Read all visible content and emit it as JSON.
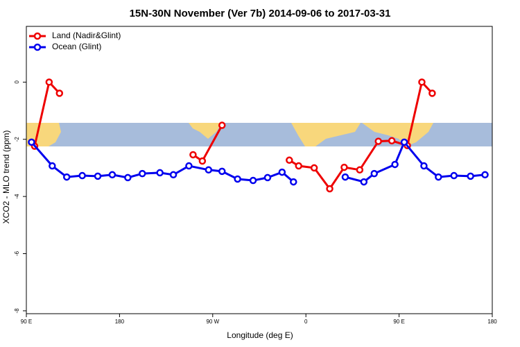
{
  "chart_data": {
    "type": "line",
    "title": "15N-30N November (Ver 7b)   2014-09-06 to 2017-03-31",
    "x_label": "Longitude (deg E)",
    "y_label": "XCO2 - MLO trend (ppm)",
    "xlim": [
      90,
      540
    ],
    "ylim": [
      -8.1,
      1.95
    ],
    "xticks": [
      {
        "value": 90,
        "label": "90 E"
      },
      180,
      {
        "value": 270,
        "label": "90 W"
      },
      {
        "value": 360,
        "label": "0"
      },
      {
        "value": 450,
        "label": "90 E"
      },
      {
        "value": 540,
        "label": "180"
      }
    ],
    "yticks": [
      0,
      -2,
      -4,
      -6,
      -8
    ],
    "legend": "top-left",
    "series": [
      {
        "name": "Land (Nadir&Glint)",
        "color": "#ee0000",
        "x": [
          98,
          112,
          122,
          null,
          251,
          260,
          279,
          null,
          344,
          353,
          368,
          383,
          397,
          412,
          430,
          443,
          458,
          472,
          482
        ],
        "values": [
          -2.24,
          0,
          -0.39,
          null,
          -2.54,
          -2.76,
          -1.51,
          null,
          -2.73,
          -2.93,
          -3.0,
          -3.73,
          -2.98,
          -3.07,
          -2.07,
          -2.05,
          -2.22,
          0,
          -0.39
        ]
      },
      {
        "name": "Ocean (Glint)",
        "color": "#0000ee",
        "x": [
          95,
          115,
          129,
          144,
          159,
          173,
          188,
          202,
          219,
          232,
          247,
          266,
          279,
          294,
          309,
          323,
          337,
          348,
          null,
          398,
          416,
          426,
          446,
          455,
          474,
          488,
          503,
          519,
          533
        ],
        "values": [
          -2.1,
          -2.93,
          -3.32,
          -3.27,
          -3.29,
          -3.24,
          -3.34,
          -3.2,
          -3.17,
          -3.24,
          -2.93,
          -3.07,
          -3.12,
          -3.39,
          -3.44,
          -3.34,
          -3.15,
          -3.49,
          null,
          -3.32,
          -3.49,
          -3.2,
          -2.88,
          -2.1,
          -2.93,
          -3.32,
          -3.27,
          -3.29,
          -3.24
        ]
      }
    ]
  }
}
